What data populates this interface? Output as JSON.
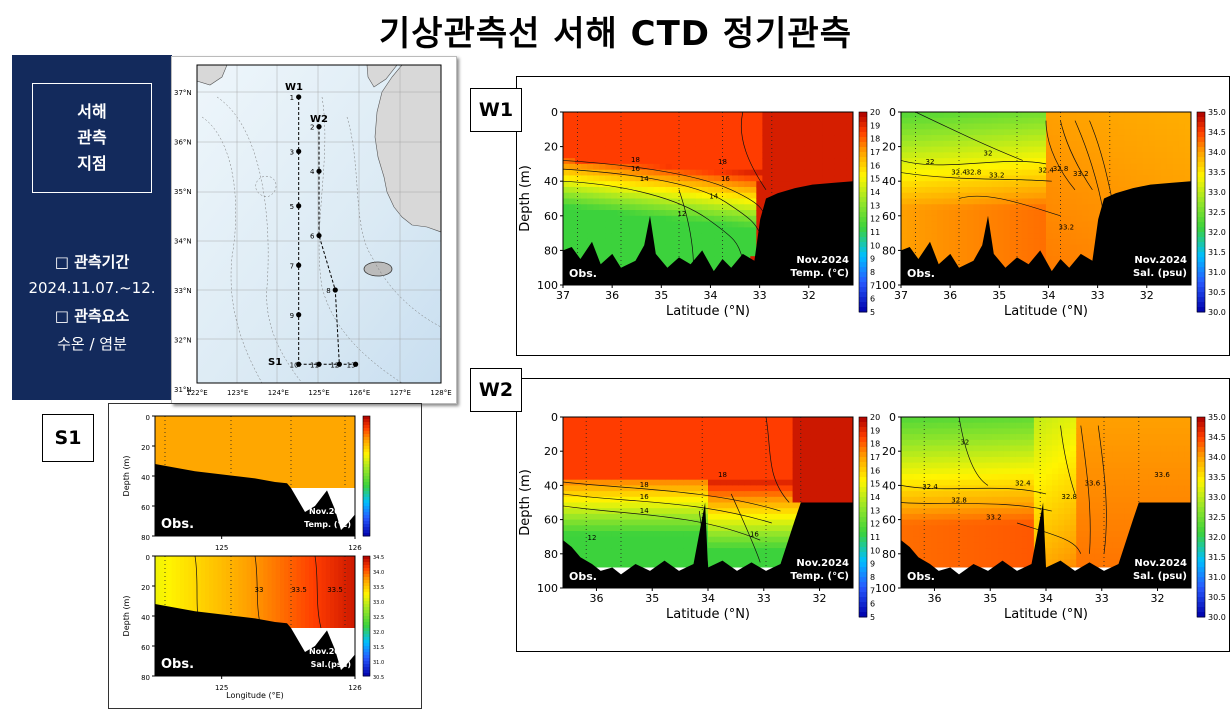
{
  "title": "기상관측선 서해 CTD 정기관측",
  "info": {
    "box_lines": [
      "서해",
      "관측",
      "지점"
    ],
    "period_label": "□ 관측기간",
    "period_value": "2024.11.07.~12.",
    "element_label": "□ 관측요소",
    "element_value": "수온 / 염분"
  },
  "map": {
    "lat_ticks": [
      "37°N",
      "36°N",
      "35°N",
      "34°N",
      "33°N",
      "32°N",
      "31°N"
    ],
    "lon_ticks": [
      "122°E",
      "123°E",
      "124°E",
      "125°E",
      "126°E",
      "127°E",
      "128°E"
    ],
    "line_labels": [
      "W1",
      "W2",
      "S1"
    ],
    "stations": [
      {
        "id": "1",
        "lon": 124.5,
        "lat": 36.9
      },
      {
        "id": "2",
        "lon": 125.0,
        "lat": 36.3
      },
      {
        "id": "3",
        "lon": 124.5,
        "lat": 35.8
      },
      {
        "id": "4",
        "lon": 125.0,
        "lat": 35.4
      },
      {
        "id": "5",
        "lon": 124.5,
        "lat": 34.7
      },
      {
        "id": "6",
        "lon": 125.0,
        "lat": 34.1
      },
      {
        "id": "7",
        "lon": 124.5,
        "lat": 33.5
      },
      {
        "id": "8",
        "lon": 125.4,
        "lat": 33.0
      },
      {
        "id": "9",
        "lon": 124.5,
        "lat": 32.5
      },
      {
        "id": "10",
        "lon": 124.5,
        "lat": 31.5
      },
      {
        "id": "11",
        "lon": 125.0,
        "lat": 31.5
      },
      {
        "id": "12",
        "lon": 125.5,
        "lat": 31.5
      },
      {
        "id": "13",
        "lon": 125.9,
        "lat": 31.5
      }
    ]
  },
  "tags": {
    "w1": "W1",
    "w2": "W2",
    "s1": "S1"
  },
  "chart_data": [
    {
      "id": "w1-temp",
      "type": "heatmap",
      "panel": "W1",
      "xlabel": "Latitude (°N)",
      "ylabel": "Depth (m)",
      "x_ticks": [
        37,
        36,
        35,
        34,
        33,
        32
      ],
      "y_ticks": [
        0,
        20,
        40,
        60,
        80,
        100
      ],
      "xlim": [
        37,
        31.1
      ],
      "ylim": [
        0,
        100
      ],
      "corner_left": "Obs.",
      "corner_right": [
        "Nov.2024",
        "Temp. (°C)"
      ],
      "colorbar": {
        "min": 5,
        "max": 20,
        "ticks": [
          20,
          19,
          18,
          17,
          16,
          15,
          14,
          13,
          12,
          11,
          10,
          9,
          8,
          7,
          6,
          5
        ]
      },
      "contour_labels": [
        "18",
        "16",
        "14",
        "12",
        "18",
        "16",
        "14"
      ]
    },
    {
      "id": "w1-sal",
      "type": "heatmap",
      "panel": "W1",
      "xlabel": "Latitude (°N)",
      "x_ticks": [
        37,
        36,
        35,
        34,
        33,
        32
      ],
      "y_ticks": [
        0,
        20,
        40,
        60,
        80,
        100
      ],
      "xlim": [
        37,
        31.1
      ],
      "ylim": [
        0,
        100
      ],
      "corner_left": "Obs.",
      "corner_right": [
        "Nov.2024",
        "Sal. (psu)"
      ],
      "colorbar": {
        "min": 30.0,
        "max": 35.0,
        "ticks": [
          "35.0",
          "34.5",
          "34.0",
          "33.5",
          "33.0",
          "32.5",
          "32.0",
          "31.5",
          "31.0",
          "30.5",
          "30.0"
        ]
      },
      "contour_labels": [
        "32",
        "32.4",
        "32.8",
        "33.2",
        "32",
        "32.4",
        "32.8",
        "33.2",
        "33.2"
      ]
    },
    {
      "id": "w2-temp",
      "type": "heatmap",
      "panel": "W2",
      "xlabel": "Latitude (°N)",
      "ylabel": "Depth (m)",
      "x_ticks": [
        36,
        35,
        34,
        33,
        32
      ],
      "y_ticks": [
        0,
        20,
        40,
        60,
        80,
        100
      ],
      "xlim": [
        36.6,
        31.4
      ],
      "ylim": [
        0,
        100
      ],
      "corner_left": "Obs.",
      "corner_right": [
        "Nov.2024",
        "Temp. (°C)"
      ],
      "colorbar": {
        "min": 5,
        "max": 20,
        "ticks": [
          20,
          19,
          18,
          17,
          16,
          15,
          14,
          13,
          12,
          11,
          10,
          9,
          8,
          7,
          6,
          5
        ]
      },
      "contour_labels": [
        "18",
        "16",
        "14",
        "12",
        "18",
        "16"
      ]
    },
    {
      "id": "w2-sal",
      "type": "heatmap",
      "panel": "W2",
      "xlabel": "Latitude (°N)",
      "x_ticks": [
        36,
        35,
        34,
        33,
        32
      ],
      "y_ticks": [
        0,
        20,
        40,
        60,
        80,
        100
      ],
      "xlim": [
        36.6,
        31.4
      ],
      "ylim": [
        0,
        100
      ],
      "corner_left": "Obs.",
      "corner_right": [
        "Nov.2024",
        "Sal. (psu)"
      ],
      "colorbar": {
        "min": 30.0,
        "max": 35.0,
        "ticks": [
          "35.0",
          "34.5",
          "34.0",
          "33.5",
          "33.0",
          "32.5",
          "32.0",
          "31.5",
          "31.0",
          "30.5",
          "30.0"
        ]
      },
      "contour_labels": [
        "32",
        "32.4",
        "32.8",
        "33.2",
        "33.6",
        "33.6",
        "32.4",
        "32.8"
      ]
    },
    {
      "id": "s1-temp",
      "type": "heatmap",
      "panel": "S1",
      "ylabel": "Depth (m)",
      "x_ticks": [
        125,
        126
      ],
      "y_ticks": [
        0,
        20,
        40,
        60,
        80
      ],
      "xlim": [
        124.5,
        126.0
      ],
      "ylim": [
        0,
        80
      ],
      "corner_left": "Obs.",
      "corner_right": [
        "Nov.2024",
        "Temp. (°C)"
      ],
      "colorbar": {
        "min": 5,
        "max": 20
      }
    },
    {
      "id": "s1-sal",
      "type": "heatmap",
      "panel": "S1",
      "xlabel": "Longitude (°E)",
      "ylabel": "Depth (m)",
      "x_ticks": [
        125,
        126
      ],
      "y_ticks": [
        0,
        20,
        40,
        60,
        80
      ],
      "xlim": [
        124.5,
        126.0
      ],
      "ylim": [
        0,
        80
      ],
      "corner_left": "Obs.",
      "corner_right": [
        "Nov.2024",
        "Sal.(psu)"
      ],
      "colorbar": {
        "min": 30.5,
        "max": 34.5,
        "ticks": [
          "34.5",
          "34.0",
          "33.5",
          "33.0",
          "32.5",
          "32.0",
          "31.5",
          "31.0",
          "30.5"
        ]
      },
      "contour_labels": [
        "33",
        "33.5",
        "33.5"
      ]
    }
  ]
}
